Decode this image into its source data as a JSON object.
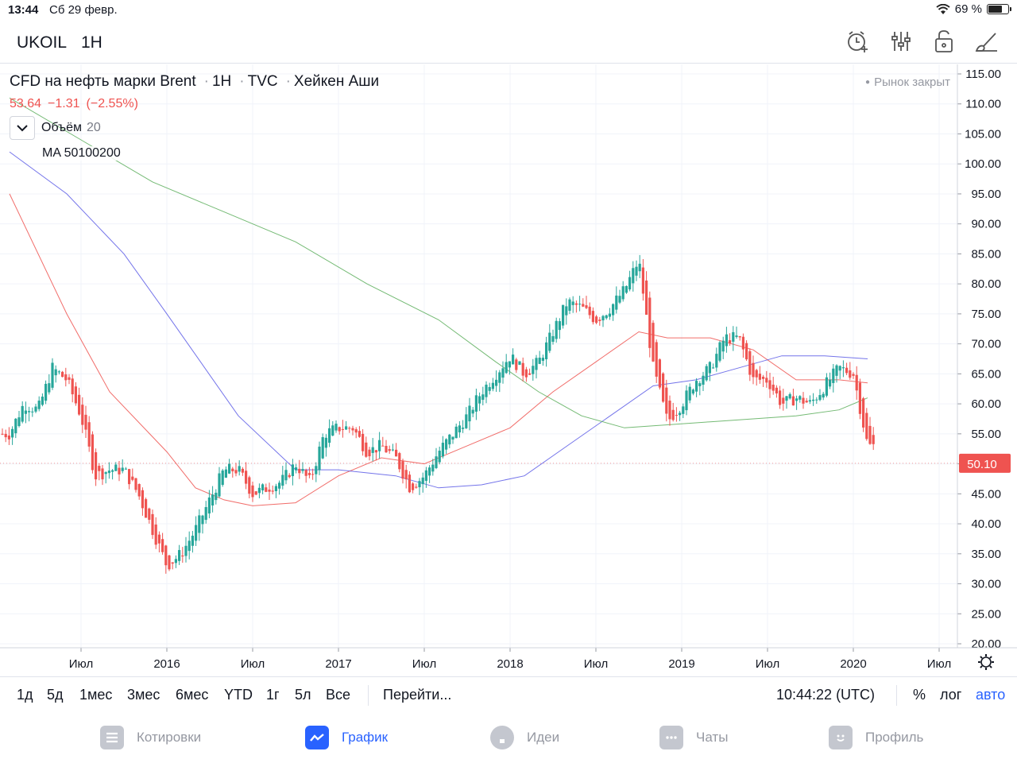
{
  "status": {
    "time": "13:44",
    "date": "Сб 29 февр.",
    "battery": "69 %",
    "battery_level": 0.69
  },
  "header": {
    "symbol": "UKOIL",
    "interval": "1H"
  },
  "legend": {
    "title_parts": [
      "CFD на нефть марки Brent",
      "1H",
      "TVC",
      "Хейкен Аши"
    ],
    "last": "53.64",
    "change": "−1.31",
    "change_pct": "(−2.55%)",
    "volume_label": "Объём",
    "volume_len": "20",
    "ma_label": "MA 50100200"
  },
  "market_status": "Рынок закрыт",
  "price_badge": "50.10",
  "range_bar": {
    "periods": [
      "1д",
      "5д",
      "1мес",
      "3мес",
      "6мес",
      "YTD",
      "1г",
      "5л",
      "Все"
    ],
    "goto": "Перейти...",
    "clock": "10:44:22 (UTC)",
    "percent": "%",
    "log": "лог",
    "auto": "авто"
  },
  "nav": [
    "Котировки",
    "График",
    "Идеи",
    "Чаты",
    "Профиль"
  ],
  "colors": {
    "up": "#26a69a",
    "down": "#ef5350",
    "ma50": "#ef5350",
    "ma100": "#5c5ce6",
    "ma200": "#5cae5c",
    "accent": "#2962ff"
  },
  "chart_data": {
    "type": "line",
    "y_ticks": [
      "115.00",
      "110.00",
      "105.00",
      "100.00",
      "95.00",
      "90.00",
      "85.00",
      "80.00",
      "75.00",
      "70.00",
      "65.00",
      "60.00",
      "55.00",
      "50.00",
      "45.00",
      "40.00",
      "35.00",
      "30.00",
      "25.00",
      "20.00"
    ],
    "ylim": [
      20,
      115
    ],
    "x_ticks": [
      "Июл",
      "2016",
      "Июл",
      "2017",
      "Июл",
      "2018",
      "Июл",
      "2019",
      "Июл",
      "2020",
      "Июл"
    ],
    "x_tick_dates": [
      "2015-07",
      "2016-01",
      "2016-07",
      "2017-01",
      "2017-07",
      "2018-01",
      "2018-07",
      "2019-01",
      "2019-07",
      "2020-01",
      "2020-07"
    ],
    "series": [
      {
        "type": "heikin-ashi",
        "x": [
          "2015-02",
          "2015-03",
          "2015-04",
          "2015-05",
          "2015-06",
          "2015-07",
          "2015-08",
          "2015-09",
          "2015-10",
          "2015-11",
          "2015-12",
          "2016-01",
          "2016-02",
          "2016-03",
          "2016-04",
          "2016-05",
          "2016-06",
          "2016-07",
          "2016-08",
          "2016-09",
          "2016-10",
          "2016-11",
          "2016-12",
          "2017-01",
          "2017-02",
          "2017-03",
          "2017-04",
          "2017-05",
          "2017-06",
          "2017-07",
          "2017-08",
          "2017-09",
          "2017-10",
          "2017-11",
          "2017-12",
          "2018-01",
          "2018-02",
          "2018-03",
          "2018-04",
          "2018-05",
          "2018-06",
          "2018-07",
          "2018-08",
          "2018-09",
          "2018-10",
          "2018-11",
          "2018-12",
          "2019-01",
          "2019-02",
          "2019-03",
          "2019-04",
          "2019-05",
          "2019-06",
          "2019-07",
          "2019-08",
          "2019-09",
          "2019-10",
          "2019-11",
          "2019-12",
          "2020-01",
          "2020-02"
        ],
        "y": [
          55,
          60,
          59,
          66,
          64,
          58,
          48,
          49,
          49,
          45,
          39,
          33,
          35,
          39,
          44,
          49,
          49,
          45,
          46,
          47,
          50,
          47,
          55,
          56,
          56,
          52,
          53,
          51,
          46,
          48,
          52,
          55,
          58,
          62,
          65,
          68,
          65,
          67,
          72,
          77,
          76,
          74,
          76,
          79,
          84,
          66,
          57,
          60,
          64,
          66,
          71,
          71,
          64,
          64,
          60,
          61,
          60,
          63,
          66,
          65,
          53
        ]
      },
      {
        "type": "line",
        "x": [
          "2015-02",
          "2015-06",
          "2015-09",
          "2016-01",
          "2016-03",
          "2016-05",
          "2016-07",
          "2016-10",
          "2017-01",
          "2017-04",
          "2017-07",
          "2017-10",
          "2018-01",
          "2018-04",
          "2018-07",
          "2018-10",
          "2018-12",
          "2019-03",
          "2019-06",
          "2019-09",
          "2019-12",
          "2020-02"
        ],
        "y": [
          95,
          75,
          62,
          52,
          46,
          44,
          43,
          43.5,
          48,
          51,
          50,
          53,
          56,
          62,
          67,
          72,
          71,
          71,
          69,
          64,
          64,
          63.5
        ]
      },
      {
        "type": "line",
        "x": [
          "2015-02",
          "2015-06",
          "2015-10",
          "2016-01",
          "2016-06",
          "2016-10",
          "2017-01",
          "2017-05",
          "2017-08",
          "2017-11",
          "2018-02",
          "2018-05",
          "2018-08",
          "2018-11",
          "2019-02",
          "2019-05",
          "2019-08",
          "2019-11",
          "2020-02"
        ],
        "y": [
          102,
          95,
          85,
          75,
          58,
          49,
          49,
          48,
          46,
          46.5,
          48,
          53,
          58,
          63,
          64,
          66,
          68,
          68,
          67.5
        ]
      },
      {
        "type": "line",
        "x": [
          "2015-02",
          "2015-07",
          "2015-12",
          "2016-05",
          "2016-10",
          "2017-03",
          "2017-08",
          "2017-12",
          "2018-03",
          "2018-06",
          "2018-09",
          "2018-12",
          "2019-03",
          "2019-06",
          "2019-09",
          "2019-12",
          "2020-02"
        ],
        "y": [
          111,
          104,
          97,
          92,
          87,
          80,
          74,
          67,
          62,
          58,
          56,
          56.5,
          57,
          57.5,
          58,
          59,
          61
        ]
      }
    ]
  }
}
